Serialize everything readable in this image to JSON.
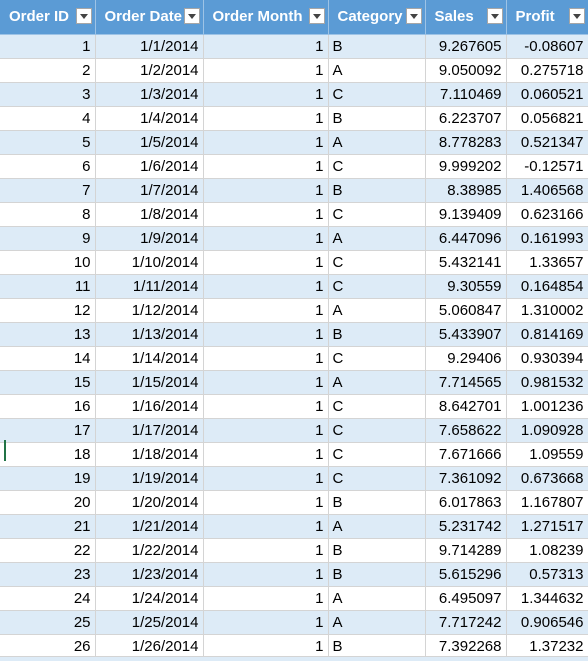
{
  "headers": {
    "order_id": "Order ID",
    "order_date": "Order Date",
    "order_month": "Order Month",
    "category": "Category",
    "sales": "Sales",
    "profit": "Profit"
  },
  "filter_icon": "filter-dropdown-icon",
  "colors": {
    "header_background": "#5b9bd5",
    "header_text": "#ffffff",
    "band_row": "#ddebf7",
    "plain_row": "#ffffff",
    "gridline": "#d4d4d4"
  },
  "rows": [
    {
      "order_id": "1",
      "order_date": "1/1/2014",
      "order_month": "1",
      "category": "B",
      "sales": "9.267605",
      "profit": "-0.08607"
    },
    {
      "order_id": "2",
      "order_date": "1/2/2014",
      "order_month": "1",
      "category": "A",
      "sales": "9.050092",
      "profit": "0.275718"
    },
    {
      "order_id": "3",
      "order_date": "1/3/2014",
      "order_month": "1",
      "category": "C",
      "sales": "7.110469",
      "profit": "0.060521"
    },
    {
      "order_id": "4",
      "order_date": "1/4/2014",
      "order_month": "1",
      "category": "B",
      "sales": "6.223707",
      "profit": "0.056821"
    },
    {
      "order_id": "5",
      "order_date": "1/5/2014",
      "order_month": "1",
      "category": "A",
      "sales": "8.778283",
      "profit": "0.521347"
    },
    {
      "order_id": "6",
      "order_date": "1/6/2014",
      "order_month": "1",
      "category": "C",
      "sales": "9.999202",
      "profit": "-0.12571"
    },
    {
      "order_id": "7",
      "order_date": "1/7/2014",
      "order_month": "1",
      "category": "B",
      "sales": "8.38985",
      "profit": "1.406568"
    },
    {
      "order_id": "8",
      "order_date": "1/8/2014",
      "order_month": "1",
      "category": "C",
      "sales": "9.139409",
      "profit": "0.623166"
    },
    {
      "order_id": "9",
      "order_date": "1/9/2014",
      "order_month": "1",
      "category": "A",
      "sales": "6.447096",
      "profit": "0.161993"
    },
    {
      "order_id": "10",
      "order_date": "1/10/2014",
      "order_month": "1",
      "category": "C",
      "sales": "5.432141",
      "profit": "1.33657"
    },
    {
      "order_id": "11",
      "order_date": "1/11/2014",
      "order_month": "1",
      "category": "C",
      "sales": "9.30559",
      "profit": "0.164854"
    },
    {
      "order_id": "12",
      "order_date": "1/12/2014",
      "order_month": "1",
      "category": "A",
      "sales": "5.060847",
      "profit": "1.310002"
    },
    {
      "order_id": "13",
      "order_date": "1/13/2014",
      "order_month": "1",
      "category": "B",
      "sales": "5.433907",
      "profit": "0.814169"
    },
    {
      "order_id": "14",
      "order_date": "1/14/2014",
      "order_month": "1",
      "category": "C",
      "sales": "9.29406",
      "profit": "0.930394"
    },
    {
      "order_id": "15",
      "order_date": "1/15/2014",
      "order_month": "1",
      "category": "A",
      "sales": "7.714565",
      "profit": "0.981532"
    },
    {
      "order_id": "16",
      "order_date": "1/16/2014",
      "order_month": "1",
      "category": "C",
      "sales": "8.642701",
      "profit": "1.001236"
    },
    {
      "order_id": "17",
      "order_date": "1/17/2014",
      "order_month": "1",
      "category": "C",
      "sales": "7.658622",
      "profit": "1.090928"
    },
    {
      "order_id": "18",
      "order_date": "1/18/2014",
      "order_month": "1",
      "category": "C",
      "sales": "7.671666",
      "profit": "1.09559"
    },
    {
      "order_id": "19",
      "order_date": "1/19/2014",
      "order_month": "1",
      "category": "C",
      "sales": "7.361092",
      "profit": "0.673668"
    },
    {
      "order_id": "20",
      "order_date": "1/20/2014",
      "order_month": "1",
      "category": "B",
      "sales": "6.017863",
      "profit": "1.167807"
    },
    {
      "order_id": "21",
      "order_date": "1/21/2014",
      "order_month": "1",
      "category": "A",
      "sales": "5.231742",
      "profit": "1.271517"
    },
    {
      "order_id": "22",
      "order_date": "1/22/2014",
      "order_month": "1",
      "category": "B",
      "sales": "9.714289",
      "profit": "1.08239"
    },
    {
      "order_id": "23",
      "order_date": "1/23/2014",
      "order_month": "1",
      "category": "B",
      "sales": "5.615296",
      "profit": "0.57313"
    },
    {
      "order_id": "24",
      "order_date": "1/24/2014",
      "order_month": "1",
      "category": "A",
      "sales": "6.495097",
      "profit": "1.344632"
    },
    {
      "order_id": "25",
      "order_date": "1/25/2014",
      "order_month": "1",
      "category": "A",
      "sales": "7.717242",
      "profit": "0.906546"
    },
    {
      "order_id": "26",
      "order_date": "1/26/2014",
      "order_month": "1",
      "category": "B",
      "sales": "7.392268",
      "profit": "1.37232"
    }
  ]
}
